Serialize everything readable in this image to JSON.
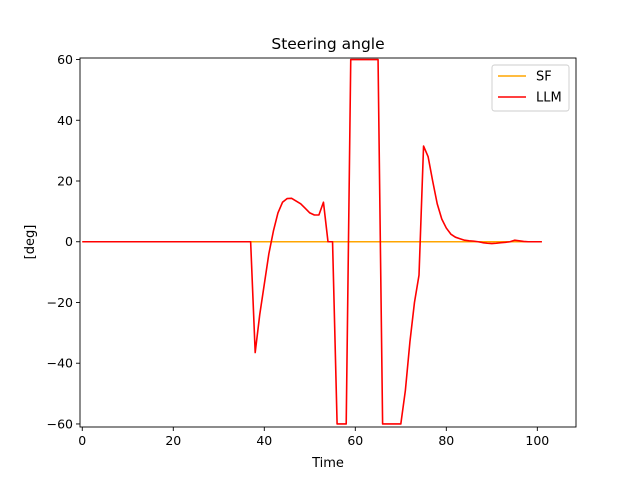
{
  "chart_data": {
    "type": "line",
    "title": "Steering angle",
    "xlabel": "Time",
    "ylabel": "[deg]",
    "xlim": [
      -0.5,
      108.5
    ],
    "ylim": [
      -61,
      60.5
    ],
    "xticks": [
      0,
      20,
      40,
      60,
      80,
      100
    ],
    "yticks": [
      -60,
      -40,
      -20,
      0,
      20,
      40,
      60
    ],
    "xtick_labels": [
      "0",
      "20",
      "40",
      "60",
      "80",
      "100"
    ],
    "ytick_labels": [
      "−60",
      "−40",
      "−20",
      "0",
      "20",
      "40",
      "60"
    ],
    "grid": false,
    "legend_position": "top-right",
    "series": [
      {
        "name": "SF",
        "color": "#FFA500",
        "x": [
          0,
          101
        ],
        "y": [
          0,
          0
        ]
      },
      {
        "name": "LLM",
        "color": "#FF0000",
        "x": [
          0,
          37,
          38,
          39,
          40,
          41,
          42,
          43,
          44,
          45,
          46,
          47,
          48,
          49,
          50,
          51,
          52,
          53,
          54,
          55,
          56,
          57,
          58,
          59,
          60,
          61,
          62,
          63,
          64,
          65,
          66,
          67,
          68,
          69,
          70,
          71,
          72,
          73,
          74,
          75,
          76,
          77,
          78,
          79,
          80,
          81,
          82,
          83,
          84,
          85,
          86,
          87,
          88,
          89,
          90,
          91,
          92,
          93,
          94,
          95,
          96,
          97,
          98,
          99,
          100,
          101
        ],
        "y": [
          0,
          0,
          -36.5,
          -24,
          -14,
          -4,
          3.5,
          9.5,
          13,
          14.2,
          14.3,
          13.4,
          12.5,
          11,
          9.5,
          8.8,
          8.8,
          13,
          0,
          0,
          -60,
          -60,
          -60,
          60,
          60,
          60,
          60,
          60,
          60,
          60,
          -60,
          -60,
          -60,
          -60,
          -60,
          -49,
          -33,
          -20,
          -11,
          31.5,
          28,
          20,
          12.5,
          7.5,
          4.5,
          2.5,
          1.5,
          1,
          0.5,
          0.3,
          0.2,
          0,
          -0.3,
          -0.5,
          -0.6,
          -0.5,
          -0.3,
          -0.2,
          0,
          0.5,
          0.3,
          0.1,
          0,
          0,
          0,
          0
        ]
      }
    ]
  }
}
